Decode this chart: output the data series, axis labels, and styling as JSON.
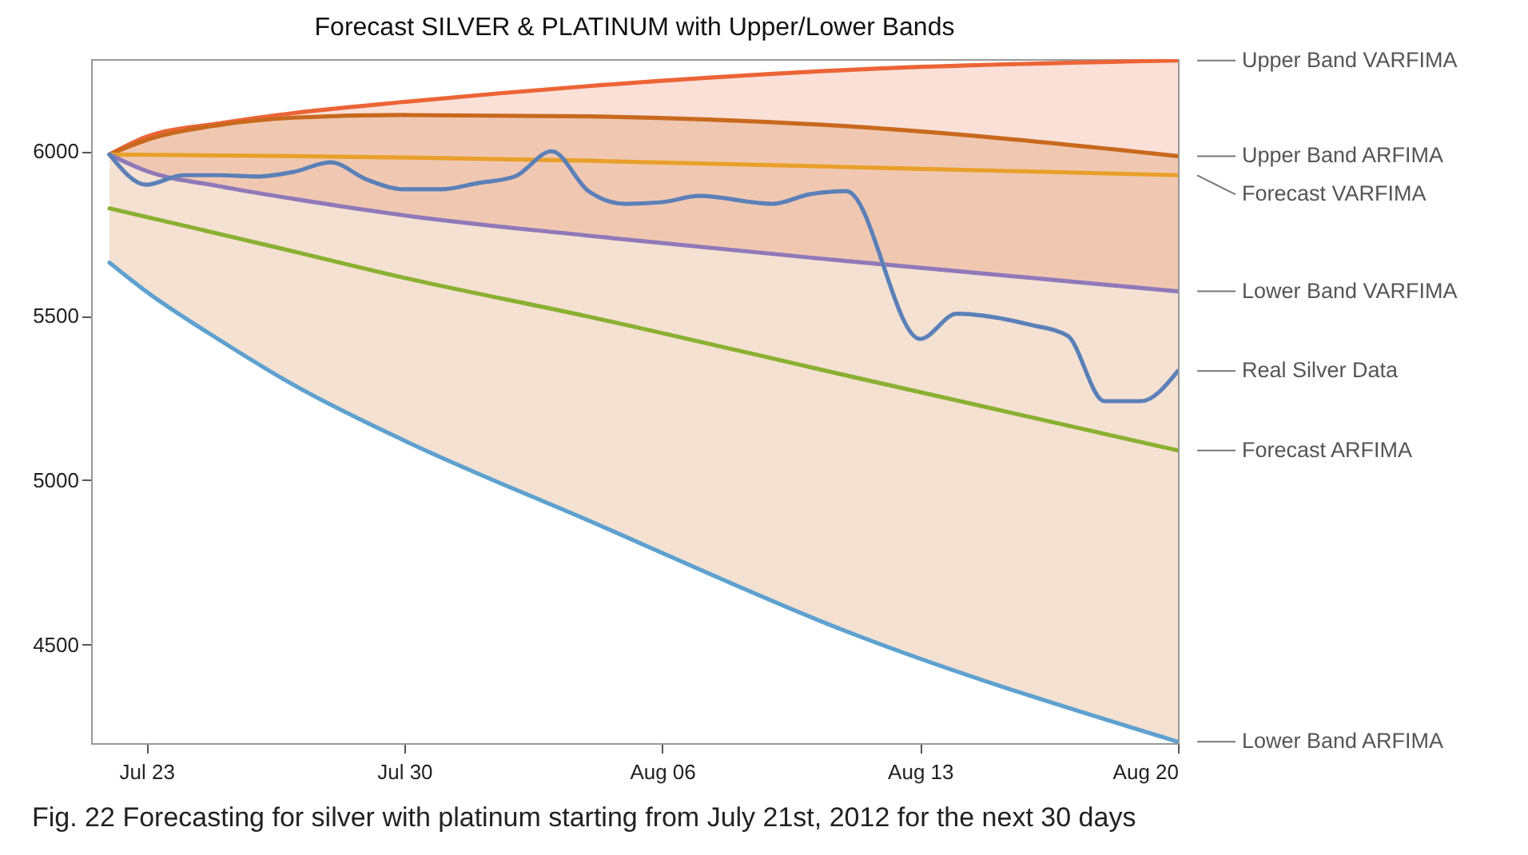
{
  "chart_data": {
    "type": "line",
    "title": "Forecast SILVER & PLATINUM with Upper/Lower Bands",
    "x": [
      "2012-07-22",
      "2012-07-23",
      "2012-07-25",
      "2012-07-27",
      "2012-07-30",
      "2012-08-04",
      "2012-08-11",
      "2012-08-20"
    ],
    "xlim": [
      "2012-07-21T12:00",
      "2012-08-20"
    ],
    "xticks": [
      {
        "value": "2012-07-23",
        "label": "Jul 23"
      },
      {
        "value": "2012-07-30",
        "label": "Jul 30"
      },
      {
        "value": "2012-08-06",
        "label": "Aug 06"
      },
      {
        "value": "2012-08-13",
        "label": "Aug 13"
      },
      {
        "value": "2012-08-20",
        "label": "Aug 20"
      }
    ],
    "ylim": [
      4200,
      6280
    ],
    "yticks": [
      4500,
      5000,
      5500,
      6000
    ],
    "grid": false,
    "series": [
      {
        "name": "Upper Band VARFIMA",
        "color": "#ec6436",
        "values": [
          5990,
          6044,
          6085,
          6116,
          6150,
          6198,
          6247,
          6276
        ],
        "lower": [
          5990,
          5940,
          5893,
          5855,
          5805,
          5743,
          5666,
          5574
        ],
        "upper": [
          5990,
          6044,
          6085,
          6116,
          6150,
          6198,
          6247,
          6276
        ]
      },
      {
        "name": "Upper Band ARFIMA",
        "color": "#c8691e",
        "values": [
          5990,
          6034,
          6080,
          6102,
          6110,
          6106,
          6076,
          5985
        ],
        "lower": [
          5661,
          5573,
          5425,
          5289,
          5120,
          4877,
          4540,
          4204
        ],
        "upper": [
          5990,
          6034,
          6080,
          6102,
          6110,
          6106,
          6076,
          5985
        ]
      },
      {
        "name": "Forecast VARFIMA",
        "color": "#e8a02a",
        "values": [
          5990,
          5989,
          5987,
          5985,
          5981,
          5971,
          5952,
          5927
        ]
      },
      {
        "name": "Lower Band VARFIMA",
        "color": "#8f79b9",
        "values": [
          5990,
          5940,
          5893,
          5855,
          5805,
          5743,
          5666,
          5574
        ]
      },
      {
        "name": "Real Silver Data",
        "color": "#5b80b8",
        "x": [
          "2012-07-22",
          "2012-07-23",
          "2012-07-24",
          "2012-07-25",
          "2012-07-26",
          "2012-07-27",
          "2012-07-28",
          "2012-07-29",
          "2012-07-30",
          "2012-07-31",
          "2012-08-01",
          "2012-08-02",
          "2012-08-03",
          "2012-08-04",
          "2012-08-05",
          "2012-08-06",
          "2012-08-07",
          "2012-08-09",
          "2012-08-10",
          "2012-08-11",
          "2012-08-13",
          "2012-08-14",
          "2012-08-16",
          "2012-08-17",
          "2012-08-18",
          "2012-08-19",
          "2012-08-20"
        ],
        "values": [
          5990,
          5898,
          5927,
          5927,
          5923,
          5937,
          5966,
          5913,
          5884,
          5884,
          5903,
          5923,
          6000,
          5879,
          5840,
          5845,
          5864,
          5840,
          5869,
          5879,
          5429,
          5506,
          5472,
          5439,
          5240,
          5240,
          5332
        ]
      },
      {
        "name": "Forecast ARFIMA",
        "color": "#8ab032",
        "values": [
          5826,
          5800,
          5748,
          5695,
          5615,
          5497,
          5318,
          5090
        ]
      },
      {
        "name": "Lower Band ARFIMA",
        "color": "#5ea1d0",
        "values": [
          5661,
          5573,
          5425,
          5289,
          5120,
          4877,
          4540,
          4204
        ]
      }
    ],
    "annotations": [
      "Fig. 22 Forecasting for silver with platinum starting from July 21st, 2012 for the next 30 days"
    ]
  }
}
